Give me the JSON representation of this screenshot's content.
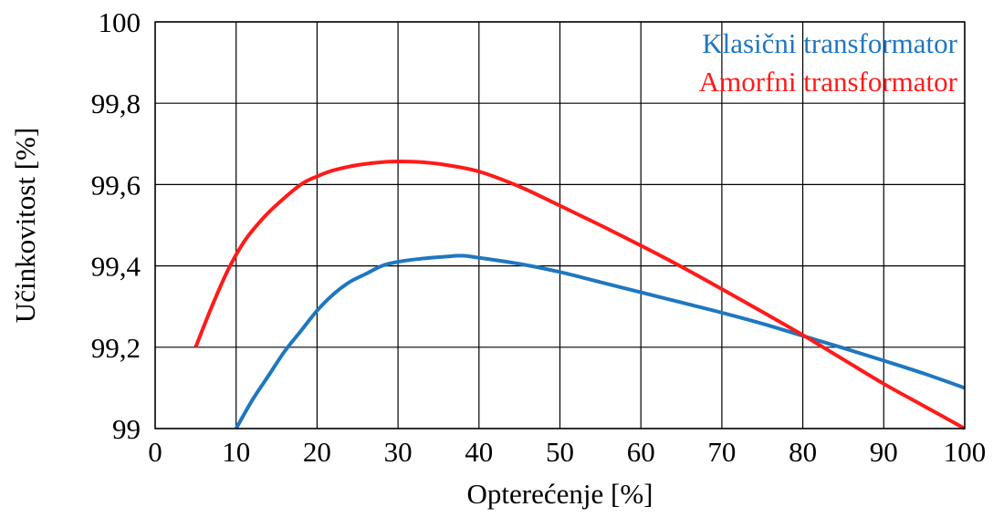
{
  "chart_data": {
    "type": "line",
    "title": "",
    "xlabel": "Opterećenje [%]",
    "ylabel": "Učinkovitost [%]",
    "xlim": [
      0,
      100
    ],
    "ylim": [
      99,
      100
    ],
    "x_ticks": [
      0,
      10,
      20,
      30,
      40,
      50,
      60,
      70,
      80,
      90,
      100
    ],
    "x_tick_labels": [
      "0",
      "10",
      "20",
      "30",
      "40",
      "50",
      "60",
      "70",
      "80",
      "90",
      "100"
    ],
    "y_ticks": [
      99,
      99.2,
      99.4,
      99.6,
      99.8,
      100
    ],
    "y_tick_labels": [
      "99",
      "99,2",
      "99,4",
      "99,6",
      "99,8",
      "100"
    ],
    "grid": true,
    "legend_position": "top-right",
    "series": [
      {
        "name": "Klasični transformator",
        "color": "#1f77c0",
        "points": [
          [
            10,
            99.0
          ],
          [
            12,
            99.07
          ],
          [
            14,
            99.13
          ],
          [
            16,
            99.19
          ],
          [
            18,
            99.24
          ],
          [
            20,
            99.29
          ],
          [
            22,
            99.33
          ],
          [
            24,
            99.36
          ],
          [
            26,
            99.38
          ],
          [
            28,
            99.4
          ],
          [
            30,
            99.41
          ],
          [
            33,
            99.418
          ],
          [
            36,
            99.423
          ],
          [
            38,
            99.425
          ],
          [
            40,
            99.42
          ],
          [
            45,
            99.405
          ],
          [
            50,
            99.385
          ],
          [
            55,
            99.36
          ],
          [
            60,
            99.335
          ],
          [
            65,
            99.31
          ],
          [
            70,
            99.285
          ],
          [
            75,
            99.258
          ],
          [
            80,
            99.228
          ],
          [
            85,
            99.198
          ],
          [
            90,
            99.167
          ],
          [
            95,
            99.135
          ],
          [
            100,
            99.1
          ]
        ]
      },
      {
        "name": "Amorfni transformator",
        "color": "#ff1a1a",
        "points": [
          [
            5,
            99.2
          ],
          [
            7,
            99.3
          ],
          [
            9,
            99.39
          ],
          [
            11,
            99.46
          ],
          [
            13,
            99.51
          ],
          [
            15,
            99.55
          ],
          [
            18,
            99.6
          ],
          [
            20,
            99.62
          ],
          [
            22,
            99.635
          ],
          [
            25,
            99.648
          ],
          [
            28,
            99.655
          ],
          [
            30,
            99.657
          ],
          [
            33,
            99.655
          ],
          [
            36,
            99.648
          ],
          [
            40,
            99.632
          ],
          [
            45,
            99.595
          ],
          [
            50,
            99.548
          ],
          [
            55,
            99.5
          ],
          [
            60,
            99.45
          ],
          [
            65,
            99.398
          ],
          [
            70,
            99.343
          ],
          [
            75,
            99.287
          ],
          [
            80,
            99.23
          ],
          [
            85,
            99.17
          ],
          [
            90,
            99.11
          ],
          [
            95,
            99.055
          ],
          [
            100,
            99.0
          ]
        ]
      }
    ]
  }
}
